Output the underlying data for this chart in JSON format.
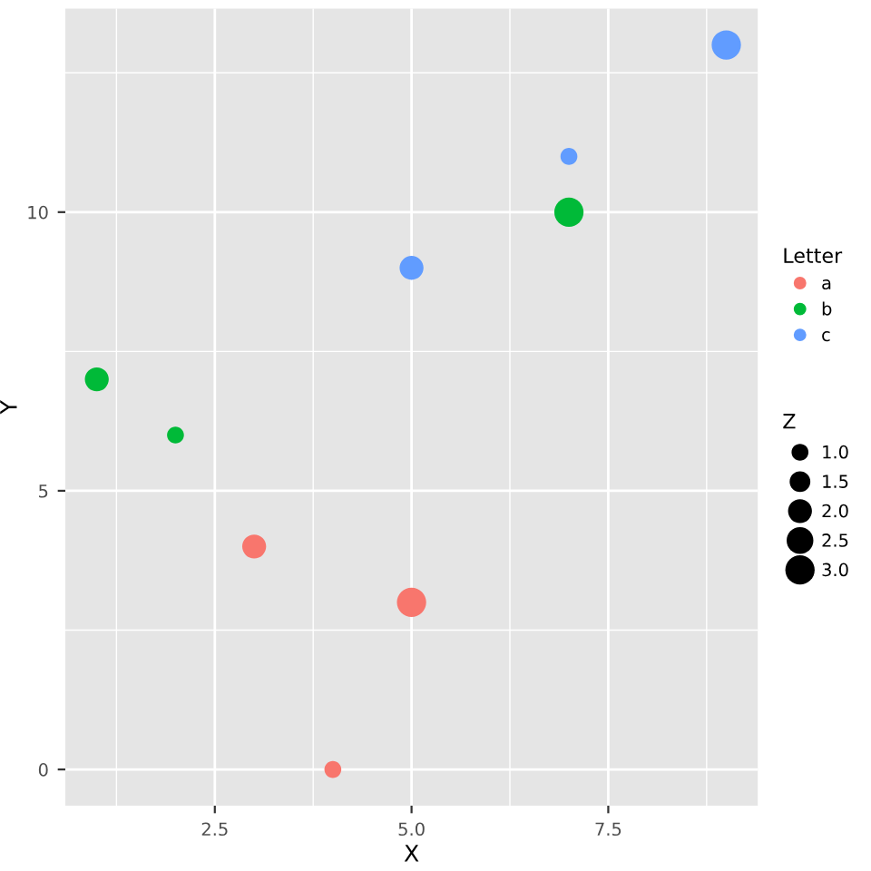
{
  "chart_data": {
    "type": "bubble",
    "xlabel": "X",
    "ylabel": "Y",
    "legend_title": "Letter",
    "annotations": [
      "Z"
    ],
    "series": [
      {
        "name": "a",
        "color": "#f8766d",
        "x": [
          3,
          4,
          5
        ],
        "values": [
          4,
          0,
          3
        ],
        "sizes": [
          2,
          1,
          3
        ]
      },
      {
        "name": "b",
        "color": "#00ba38",
        "x": [
          1,
          2,
          7
        ],
        "values": [
          7,
          6,
          10
        ],
        "sizes": [
          2,
          1,
          3
        ]
      },
      {
        "name": "c",
        "color": "#619cff",
        "x": [
          5,
          7,
          9
        ],
        "values": [
          9,
          11,
          13
        ],
        "sizes": [
          2,
          1,
          3
        ]
      }
    ],
    "size_legend": [
      {
        "value": 1,
        "label": "1.0"
      },
      {
        "value": 1.5,
        "label": "1.5"
      },
      {
        "value": 2,
        "label": "2.0"
      },
      {
        "value": 2.5,
        "label": "2.5"
      },
      {
        "value": 3,
        "label": "3.0"
      }
    ],
    "xlim": [
      0.6,
      9.4
    ],
    "ylim": [
      -0.65,
      13.65
    ],
    "xticks": [
      {
        "value": 2.5,
        "label": "2.5"
      },
      {
        "value": 5,
        "label": "5.0"
      },
      {
        "value": 7.5,
        "label": "7.5"
      }
    ],
    "yticks": [
      0,
      5,
      10
    ],
    "grid": true,
    "legend": "right"
  }
}
